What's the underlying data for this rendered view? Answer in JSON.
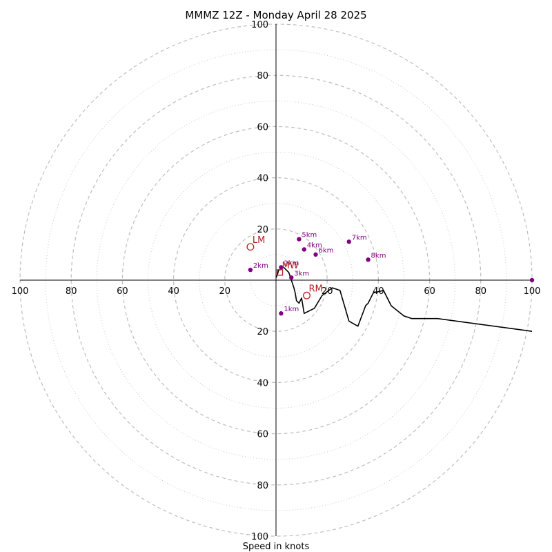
{
  "chart_data": {
    "type": "line",
    "title": "MMMZ 12Z - Monday April 28 2025",
    "xlabel": "Speed in knots",
    "xlim": [
      -100,
      100
    ],
    "ylim": [
      -100,
      100
    ],
    "grid": true,
    "rings_major": [
      20,
      40,
      60,
      80,
      100
    ],
    "rings_minor": [
      10,
      30,
      50,
      70,
      90
    ],
    "tick_labels": [
      "100",
      "80",
      "60",
      "40",
      "20",
      "20",
      "40",
      "60",
      "80",
      "100"
    ],
    "hodograph": {
      "x": [
        0,
        0.5,
        0.8,
        1.0,
        1.5,
        3,
        5,
        6,
        7,
        7.5,
        8,
        9,
        10,
        11,
        15,
        18,
        22,
        25,
        28.5,
        32,
        35,
        36,
        38,
        42,
        45,
        50,
        53,
        63,
        100
      ],
      "y": [
        1,
        2,
        3,
        4,
        4,
        5,
        3,
        0,
        -3,
        -5,
        -8,
        -9,
        -7,
        -13,
        -11,
        -6,
        -3,
        -4,
        -16,
        -18,
        -10,
        -9,
        -5,
        -4,
        -10,
        -14,
        -15,
        -15,
        -20
      ]
    },
    "height_points": [
      {
        "label": "2km",
        "x": 2,
        "y": 5
      },
      {
        "label": "3km",
        "x": 6,
        "y": 1
      },
      {
        "label": "4km",
        "x": 11,
        "y": 12
      },
      {
        "label": "5km",
        "x": 9,
        "y": 16
      },
      {
        "label": "6km",
        "x": 15.5,
        "y": 10
      },
      {
        "label": "7km",
        "x": 28.5,
        "y": 15
      },
      {
        "label": "8km",
        "x": 36,
        "y": 8
      },
      {
        "label": "1km",
        "x": 2,
        "y": -13
      },
      {
        "label": "2km",
        "x": -10,
        "y": 4
      },
      {
        "label": "",
        "x": 100,
        "y": 0
      }
    ],
    "markers": [
      {
        "label": "LM",
        "x": -10,
        "y": 13,
        "shape": "circle"
      },
      {
        "label": "RM",
        "x": 12,
        "y": -6,
        "shape": "circle"
      },
      {
        "label": "MW",
        "x": 1.5,
        "y": 3,
        "shape": "square"
      }
    ]
  }
}
